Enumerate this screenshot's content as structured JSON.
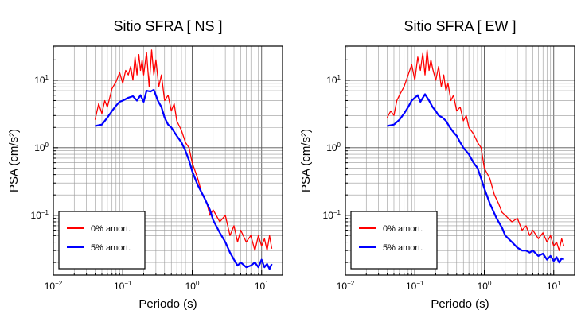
{
  "charts": [
    {
      "title": "Sitio SFRA [ NS ]",
      "xlabel": "Periodo (s)",
      "ylabel": "PSA (cm/s²)",
      "legend": [
        "0% amort.",
        "5% amort."
      ]
    },
    {
      "title": "Sitio SFRA [ EW ]",
      "xlabel": "Periodo (s)",
      "ylabel": "PSA (cm/s²)",
      "legend": [
        "0% amort.",
        "5% amort."
      ]
    }
  ],
  "x_tick_labels": [
    {
      "base": "10",
      "exp": "−2"
    },
    {
      "base": "10",
      "exp": "−1"
    },
    {
      "base": "10",
      "exp": "0"
    },
    {
      "base": "10",
      "exp": "1"
    }
  ],
  "y_tick_labels": [
    {
      "base": "10",
      "exp": "−1"
    },
    {
      "base": "10",
      "exp": "0"
    },
    {
      "base": "10",
      "exp": "1"
    }
  ],
  "chart_data": [
    {
      "type": "line",
      "title": "Sitio SFRA [ NS ]",
      "xlabel": "Periodo (s)",
      "ylabel": "PSA (cm/s²)",
      "xscale": "log",
      "yscale": "log",
      "xlim": [
        0.01,
        20
      ],
      "ylim": [
        0.013,
        32
      ],
      "grid": true,
      "legend_position": "bottom-left",
      "series": [
        {
          "name": "0% amort.",
          "color": "#ff0000",
          "x": [
            0.04,
            0.045,
            0.05,
            0.055,
            0.06,
            0.07,
            0.08,
            0.09,
            0.1,
            0.11,
            0.12,
            0.13,
            0.14,
            0.15,
            0.16,
            0.17,
            0.18,
            0.19,
            0.2,
            0.22,
            0.24,
            0.26,
            0.28,
            0.3,
            0.33,
            0.36,
            0.4,
            0.45,
            0.5,
            0.55,
            0.6,
            0.7,
            0.8,
            0.9,
            1.0,
            1.2,
            1.4,
            1.6,
            1.8,
            2.0,
            2.5,
            3.0,
            3.5,
            4.0,
            4.5,
            5.0,
            6.0,
            7.0,
            8.0,
            9.0,
            10.0,
            11.0,
            12.0,
            13.0,
            14.0
          ],
          "y": [
            2.6,
            4.5,
            3.2,
            5.0,
            4.0,
            7.5,
            9.5,
            13.0,
            9.0,
            14.0,
            12.0,
            16.0,
            10.0,
            22.0,
            12.0,
            24.0,
            14.0,
            20.0,
            12.0,
            26.0,
            8.0,
            28.0,
            12.0,
            20.0,
            8.0,
            12.0,
            5.0,
            6.0,
            3.5,
            4.5,
            2.5,
            1.8,
            1.2,
            1.0,
            0.6,
            0.35,
            0.2,
            0.16,
            0.1,
            0.12,
            0.08,
            0.1,
            0.05,
            0.07,
            0.04,
            0.06,
            0.04,
            0.05,
            0.03,
            0.05,
            0.035,
            0.045,
            0.03,
            0.05,
            0.032
          ]
        },
        {
          "name": "5% amort.",
          "color": "#0000ff",
          "x": [
            0.04,
            0.05,
            0.06,
            0.07,
            0.08,
            0.09,
            0.1,
            0.12,
            0.14,
            0.16,
            0.18,
            0.2,
            0.22,
            0.25,
            0.28,
            0.32,
            0.36,
            0.4,
            0.45,
            0.5,
            0.6,
            0.7,
            0.8,
            0.9,
            1.0,
            1.2,
            1.5,
            1.8,
            2.0,
            2.5,
            3.0,
            3.5,
            4.0,
            4.5,
            5.0,
            6.0,
            7.0,
            8.0,
            9.0,
            10.0,
            11.0,
            12.0,
            13.0,
            14.0
          ],
          "y": [
            2.1,
            2.2,
            2.8,
            3.5,
            4.2,
            4.8,
            5.0,
            5.5,
            5.8,
            5.0,
            6.0,
            4.8,
            7.0,
            6.8,
            7.2,
            5.0,
            4.0,
            2.8,
            2.2,
            2.0,
            1.5,
            1.2,
            0.9,
            0.65,
            0.45,
            0.28,
            0.18,
            0.12,
            0.085,
            0.055,
            0.04,
            0.028,
            0.022,
            0.018,
            0.02,
            0.017,
            0.018,
            0.02,
            0.017,
            0.022,
            0.017,
            0.019,
            0.016,
            0.019
          ]
        }
      ]
    },
    {
      "type": "line",
      "title": "Sitio SFRA [ EW ]",
      "xlabel": "Periodo (s)",
      "ylabel": "PSA (cm/s²)",
      "xscale": "log",
      "yscale": "log",
      "xlim": [
        0.01,
        20
      ],
      "ylim": [
        0.013,
        32
      ],
      "grid": true,
      "legend_position": "bottom-left",
      "series": [
        {
          "name": "0% amort.",
          "color": "#ff0000",
          "x": [
            0.04,
            0.045,
            0.05,
            0.055,
            0.06,
            0.07,
            0.08,
            0.09,
            0.1,
            0.11,
            0.12,
            0.13,
            0.14,
            0.15,
            0.16,
            0.17,
            0.18,
            0.2,
            0.22,
            0.24,
            0.26,
            0.28,
            0.3,
            0.33,
            0.36,
            0.4,
            0.45,
            0.5,
            0.55,
            0.6,
            0.7,
            0.8,
            0.9,
            1.0,
            1.2,
            1.4,
            1.6,
            1.8,
            2.0,
            2.5,
            3.0,
            3.5,
            4.0,
            4.5,
            5.0,
            6.0,
            7.0,
            8.0,
            9.0,
            10.0,
            11.0,
            12.0,
            13.0,
            14.0
          ],
          "y": [
            2.8,
            3.5,
            3.0,
            5.0,
            6.0,
            8.0,
            12.0,
            17.0,
            10.0,
            22.0,
            14.0,
            25.0,
            12.0,
            28.0,
            14.0,
            20.0,
            15.0,
            10.0,
            16.0,
            8.0,
            12.0,
            7.0,
            9.0,
            5.0,
            6.0,
            3.5,
            4.0,
            2.5,
            3.0,
            2.0,
            1.6,
            1.2,
            1.0,
            0.5,
            0.35,
            0.2,
            0.15,
            0.11,
            0.1,
            0.08,
            0.09,
            0.06,
            0.07,
            0.05,
            0.06,
            0.045,
            0.055,
            0.04,
            0.05,
            0.035,
            0.04,
            0.03,
            0.045,
            0.035
          ]
        },
        {
          "name": "5% amort.",
          "color": "#0000ff",
          "x": [
            0.04,
            0.05,
            0.06,
            0.07,
            0.08,
            0.09,
            0.1,
            0.11,
            0.12,
            0.14,
            0.16,
            0.18,
            0.2,
            0.22,
            0.25,
            0.28,
            0.32,
            0.36,
            0.4,
            0.45,
            0.5,
            0.6,
            0.7,
            0.8,
            0.9,
            1.0,
            1.2,
            1.5,
            1.8,
            2.0,
            2.5,
            3.0,
            3.5,
            4.0,
            4.5,
            5.0,
            6.0,
            7.0,
            8.0,
            9.0,
            10.0,
            11.0,
            12.0,
            13.0,
            14.0
          ],
          "y": [
            2.1,
            2.2,
            2.6,
            3.2,
            4.0,
            5.0,
            5.5,
            6.0,
            4.8,
            6.2,
            5.0,
            4.0,
            3.5,
            3.0,
            2.8,
            2.5,
            2.0,
            1.7,
            1.5,
            1.2,
            1.0,
            0.8,
            0.6,
            0.5,
            0.35,
            0.25,
            0.15,
            0.09,
            0.065,
            0.05,
            0.04,
            0.033,
            0.03,
            0.03,
            0.028,
            0.03,
            0.025,
            0.027,
            0.022,
            0.025,
            0.021,
            0.024,
            0.02,
            0.023,
            0.022
          ]
        }
      ]
    }
  ]
}
